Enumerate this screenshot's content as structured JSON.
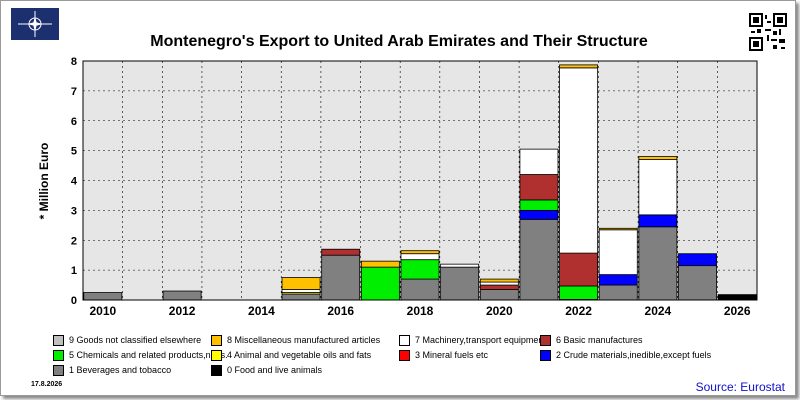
{
  "title": "Montenegro's Export to United Arab Emirates and Their Structure",
  "date": "17.8.2026",
  "source": "Source: Eurostat",
  "chart_data": {
    "type": "bar",
    "stacked": true,
    "ylabel": "* Million Euro",
    "ylim": [
      0,
      8
    ],
    "yticks": [
      0,
      1,
      2,
      3,
      4,
      5,
      6,
      7,
      8
    ],
    "xlim": [
      2009.5,
      2026.5
    ],
    "xtick_labels": [
      "2010",
      "2012",
      "2014",
      "2016",
      "2018",
      "2020",
      "2022",
      "2024",
      "2026"
    ],
    "grid": true,
    "legend_placement": "bottom",
    "categories": [
      2010,
      2011,
      2012,
      2013,
      2014,
      2015,
      2016,
      2017,
      2018,
      2019,
      2020,
      2021,
      2022,
      2023,
      2024,
      2025,
      2026
    ],
    "series": [
      {
        "name": "1 Beverages and tobacco",
        "color": "#808080",
        "values": [
          0.25,
          0,
          0.3,
          0,
          0,
          0.2,
          1.5,
          0,
          0.7,
          1.1,
          0.35,
          2.7,
          0,
          0.5,
          2.45,
          1.15,
          0
        ]
      },
      {
        "name": "0 Food and live animals",
        "color": "#000000",
        "values": [
          0,
          0,
          0,
          0,
          0,
          0,
          0,
          0,
          0,
          0,
          0,
          0,
          0,
          0,
          0,
          0,
          0.18
        ]
      },
      {
        "name": "2 Crude materials,inedible,except fuels",
        "color": "#0000ff",
        "values": [
          0,
          0,
          0,
          0,
          0,
          0,
          0,
          0,
          0,
          0,
          0,
          0.3,
          0,
          0.35,
          0.4,
          0.4,
          0
        ]
      },
      {
        "name": "3 Mineral fuels etc",
        "color": "#ff0000",
        "values": [
          0,
          0,
          0,
          0,
          0,
          0,
          0,
          0,
          0,
          0,
          0,
          0,
          0,
          0,
          0,
          0,
          0
        ]
      },
      {
        "name": "4 Animal and vegetable oils and fats",
        "color": "#ffff00",
        "values": [
          0,
          0,
          0,
          0,
          0,
          0.05,
          0,
          0,
          0,
          0,
          0,
          0,
          0.02,
          0,
          0,
          0,
          0
        ]
      },
      {
        "name": "5 Chemicals and related products,n.e.s.",
        "color": "#00ee00",
        "values": [
          0,
          0,
          0,
          0,
          0,
          0,
          0,
          1.1,
          0.65,
          0,
          0,
          0.35,
          0.45,
          0,
          0,
          0,
          0
        ]
      },
      {
        "name": "6 Basic manufactures",
        "color": "#b03030",
        "values": [
          0,
          0,
          0,
          0,
          0,
          0,
          0.2,
          0,
          0,
          0,
          0.15,
          0.85,
          1.1,
          0,
          0,
          0,
          0
        ]
      },
      {
        "name": "7 Machinery,transport equipment",
        "color": "#ffffff",
        "values": [
          0,
          0,
          0,
          0,
          0,
          0.1,
          0,
          0,
          0.2,
          0.1,
          0.1,
          0.85,
          6.2,
          1.5,
          1.85,
          0,
          0
        ]
      },
      {
        "name": "8 Miscellaneous manufactured articles",
        "color": "#ffc000",
        "values": [
          0,
          0,
          0,
          0,
          0,
          0.4,
          0,
          0.2,
          0.1,
          0,
          0.1,
          0,
          0.1,
          0.05,
          0.1,
          0,
          0
        ]
      },
      {
        "name": "9 Goods not classified elsewhere",
        "color": "#c0c0c0",
        "values": [
          0,
          0,
          0,
          0,
          0,
          0,
          0,
          0,
          0,
          0,
          0,
          0,
          0,
          0,
          0,
          0,
          0
        ]
      }
    ]
  },
  "legend": [
    {
      "label": "9 Goods not classified elsewhere",
      "color": "#c0c0c0"
    },
    {
      "label": "8 Miscellaneous manufactured articles",
      "color": "#ffc000"
    },
    {
      "label": "7 Machinery,transport equipment",
      "color": "#ffffff"
    },
    {
      "label": "6 Basic manufactures",
      "color": "#b03030"
    },
    {
      "label": "5 Chemicals and related products,n.e.s.",
      "color": "#00ee00"
    },
    {
      "label": "4 Animal and vegetable oils and fats",
      "color": "#ffff00"
    },
    {
      "label": "3 Mineral fuels etc",
      "color": "#ff0000"
    },
    {
      "label": "2 Crude materials,inedible,except fuels",
      "color": "#0000ff"
    },
    {
      "label": "1 Beverages and tobacco",
      "color": "#808080"
    },
    {
      "label": "0 Food and live animals",
      "color": "#000000"
    }
  ],
  "icons": {
    "flag": "nato-flag-icon",
    "qr": "qr-code-icon"
  }
}
